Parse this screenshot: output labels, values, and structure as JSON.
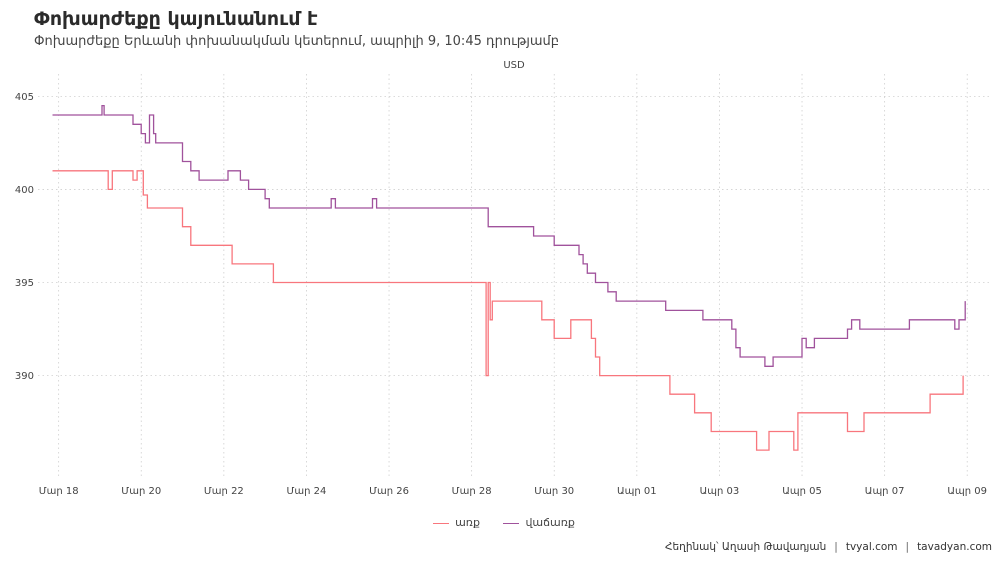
{
  "chart_data": {
    "type": "line",
    "title": "Փոխարժեքը կայունանում է",
    "subtitle": "Փոխարժեքը Երևանի փոխանակման կետերում, ապրիլի 9, 10:45 դրությամբ",
    "unit_label": "USD",
    "y_ticks": [
      "405",
      "400",
      "395",
      "390"
    ],
    "y_tick_values": [
      405,
      400,
      395,
      390
    ],
    "ylim": [
      384.5,
      406.2
    ],
    "x_ticks": [
      "Մար 18",
      "Մար 20",
      "Մար 22",
      "Մար 24",
      "Մար 26",
      "Մար 28",
      "Մար 30",
      "Ապր 01",
      "Ապր 03",
      "Ապր 05",
      "Ապր 07",
      "Ապր 09"
    ],
    "xlim": [
      -0.5,
      22.6
    ],
    "x_note": "x values are days since Mar 18 (0 = Mar 18, 14 = Apr 01)",
    "grid": true,
    "legend_position": "bottom",
    "series": [
      {
        "name": "առք",
        "color": "#f8767d",
        "points": [
          [
            -0.15,
            401
          ],
          [
            1.1,
            401
          ],
          [
            1.2,
            400
          ],
          [
            1.3,
            401
          ],
          [
            1.7,
            401
          ],
          [
            1.8,
            400.5
          ],
          [
            1.9,
            401
          ],
          [
            2.05,
            399.7
          ],
          [
            2.15,
            399
          ],
          [
            2.9,
            399
          ],
          [
            3.0,
            398
          ],
          [
            3.2,
            397
          ],
          [
            4.1,
            397
          ],
          [
            4.2,
            396
          ],
          [
            5.1,
            396
          ],
          [
            5.2,
            395
          ],
          [
            10.3,
            395
          ],
          [
            10.35,
            390
          ],
          [
            10.4,
            395
          ],
          [
            10.45,
            393
          ],
          [
            10.5,
            394
          ],
          [
            11.6,
            394
          ],
          [
            11.7,
            393
          ],
          [
            11.9,
            393
          ],
          [
            12.0,
            392
          ],
          [
            12.2,
            392
          ],
          [
            12.4,
            393
          ],
          [
            12.8,
            393
          ],
          [
            12.9,
            392
          ],
          [
            13.0,
            391
          ],
          [
            13.1,
            390
          ],
          [
            14.7,
            390
          ],
          [
            14.8,
            389
          ],
          [
            15.3,
            389
          ],
          [
            15.4,
            388
          ],
          [
            15.7,
            388
          ],
          [
            15.8,
            387
          ],
          [
            16.8,
            387
          ],
          [
            16.9,
            386
          ],
          [
            17.1,
            386
          ],
          [
            17.2,
            387
          ],
          [
            17.7,
            387
          ],
          [
            17.8,
            386
          ],
          [
            17.9,
            388
          ],
          [
            19.0,
            388
          ],
          [
            19.1,
            387
          ],
          [
            19.4,
            387
          ],
          [
            19.5,
            388
          ],
          [
            21.0,
            388
          ],
          [
            21.1,
            389
          ],
          [
            21.85,
            389
          ],
          [
            21.9,
            390
          ]
        ]
      },
      {
        "name": "վաճառք",
        "color": "#a0529c",
        "points": [
          [
            -0.15,
            404
          ],
          [
            1.0,
            404
          ],
          [
            1.05,
            404.5
          ],
          [
            1.1,
            404
          ],
          [
            1.7,
            404
          ],
          [
            1.8,
            403.5
          ],
          [
            2.0,
            403
          ],
          [
            2.1,
            402.5
          ],
          [
            2.2,
            404
          ],
          [
            2.3,
            403
          ],
          [
            2.35,
            402.5
          ],
          [
            2.9,
            402.5
          ],
          [
            3.0,
            401.5
          ],
          [
            3.2,
            401
          ],
          [
            3.4,
            400.5
          ],
          [
            4.0,
            400.5
          ],
          [
            4.1,
            401
          ],
          [
            4.4,
            400.5
          ],
          [
            4.6,
            400
          ],
          [
            4.9,
            400
          ],
          [
            5.0,
            399.5
          ],
          [
            5.1,
            399
          ],
          [
            6.5,
            399
          ],
          [
            6.6,
            399.5
          ],
          [
            6.7,
            399
          ],
          [
            7.5,
            399
          ],
          [
            7.6,
            399.5
          ],
          [
            7.7,
            399
          ],
          [
            10.3,
            399
          ],
          [
            10.4,
            398
          ],
          [
            11.4,
            398
          ],
          [
            11.5,
            397.5
          ],
          [
            11.9,
            397.5
          ],
          [
            12.0,
            397
          ],
          [
            12.5,
            397
          ],
          [
            12.6,
            396.5
          ],
          [
            12.7,
            396
          ],
          [
            12.8,
            395.5
          ],
          [
            13.0,
            395
          ],
          [
            13.2,
            395
          ],
          [
            13.3,
            394.5
          ],
          [
            13.5,
            394
          ],
          [
            14.6,
            394
          ],
          [
            14.7,
            393.5
          ],
          [
            15.5,
            393.5
          ],
          [
            15.6,
            393
          ],
          [
            16.2,
            393
          ],
          [
            16.3,
            392.5
          ],
          [
            16.4,
            391.5
          ],
          [
            16.5,
            391
          ],
          [
            17.0,
            391
          ],
          [
            17.1,
            390.5
          ],
          [
            17.3,
            391
          ],
          [
            17.9,
            391
          ],
          [
            18.0,
            392
          ],
          [
            18.1,
            391.5
          ],
          [
            18.3,
            392
          ],
          [
            19.0,
            392
          ],
          [
            19.1,
            392.5
          ],
          [
            19.2,
            393
          ],
          [
            19.4,
            392.5
          ],
          [
            20.5,
            392.5
          ],
          [
            20.6,
            393
          ],
          [
            21.6,
            393
          ],
          [
            21.7,
            392.5
          ],
          [
            21.8,
            393
          ],
          [
            21.9,
            393
          ],
          [
            21.95,
            394
          ]
        ]
      }
    ]
  },
  "legend": {
    "items": [
      {
        "label": "առք",
        "color": "#f8767d"
      },
      {
        "label": "վաճառք",
        "color": "#a0529c"
      }
    ]
  },
  "caption": {
    "author": "Հեղինակ՝ Աղասի Թավադյան",
    "site1": "tvyal.com",
    "site2": "tavadyan.com"
  }
}
